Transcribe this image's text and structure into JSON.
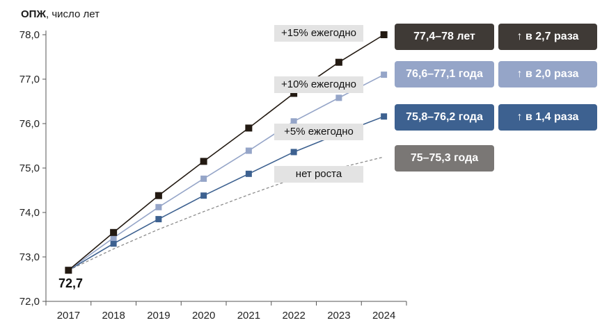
{
  "chart_data": {
    "type": "line",
    "ylabel_bold": "ОПЖ",
    "ylabel_rest": ", число лет",
    "categories": [
      "2017",
      "2018",
      "2019",
      "2020",
      "2021",
      "2022",
      "2023",
      "2024"
    ],
    "ylim": [
      72.0,
      78.0
    ],
    "yticks": [
      "72,0",
      "73,0",
      "74,0",
      "75,0",
      "76,0",
      "77,0",
      "78,0"
    ],
    "start_label": "72,7",
    "series": [
      {
        "name": "+15% ежегодно",
        "color": "#231a12",
        "style": "solid",
        "marker": "square",
        "values": [
          72.7,
          73.55,
          74.38,
          75.15,
          75.9,
          76.68,
          77.38,
          78.0
        ],
        "result": "77,4–78 лет",
        "growth": "↑ в 2,7 раза",
        "result_color": "#3f3a36",
        "growth_color": "#3f3a36"
      },
      {
        "name": "+10% ежегодно",
        "color": "#95a5c8",
        "style": "solid",
        "marker": "square",
        "values": [
          72.7,
          73.43,
          74.12,
          74.76,
          75.39,
          76.05,
          76.58,
          77.1
        ],
        "result": "76,6–77,1 года",
        "growth": "↑ в 2,0 раза",
        "result_color": "#95a5c8",
        "growth_color": "#95a5c8"
      },
      {
        "name": "+5% ежегодно",
        "color": "#3d6190",
        "style": "solid",
        "marker": "square",
        "values": [
          72.7,
          73.3,
          73.85,
          74.38,
          74.87,
          75.36,
          75.77,
          76.16
        ],
        "result": "75,8–76,2 года",
        "growth": "↑ в 1,4 раза",
        "result_color": "#3d6190",
        "growth_color": "#3d6190"
      },
      {
        "name": "нет роста",
        "color": "#8c8c8c",
        "style": "dashed",
        "marker": "none",
        "values": [
          72.7,
          73.18,
          73.62,
          74.02,
          74.4,
          74.76,
          75.0,
          75.25
        ],
        "result": "75–75,3 года",
        "growth": "",
        "result_color": "#7a7775",
        "growth_color": ""
      }
    ]
  }
}
